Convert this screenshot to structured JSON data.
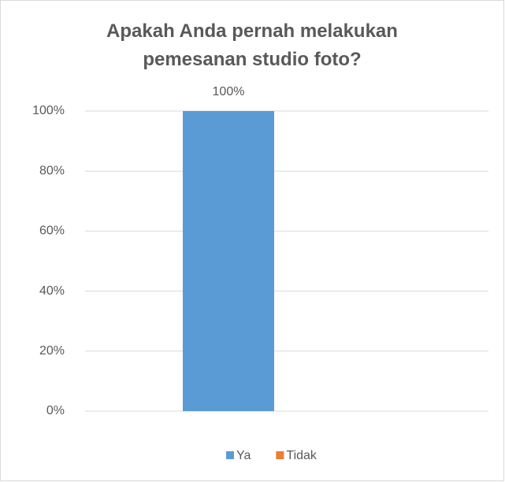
{
  "chart_data": {
    "type": "bar",
    "title": "Apakah Anda pernah melakukan pemesanan studio foto?",
    "categories": [
      null
    ],
    "series": [
      {
        "name": "Ya",
        "color": "#5b9bd5",
        "values": [
          100
        ],
        "value_labels": [
          "100%"
        ]
      },
      {
        "name": "Tidak",
        "color": "#ed7d31",
        "values": [
          0
        ]
      }
    ],
    "ylim": [
      0,
      100
    ],
    "yticks": [
      {
        "value": 0,
        "label": "0%"
      },
      {
        "value": 20,
        "label": "20%"
      },
      {
        "value": 40,
        "label": "40%"
      },
      {
        "value": 60,
        "label": "60%"
      },
      {
        "value": 80,
        "label": "80%"
      },
      {
        "value": 100,
        "label": "100%"
      }
    ],
    "grid": true,
    "legend": "bottom"
  }
}
